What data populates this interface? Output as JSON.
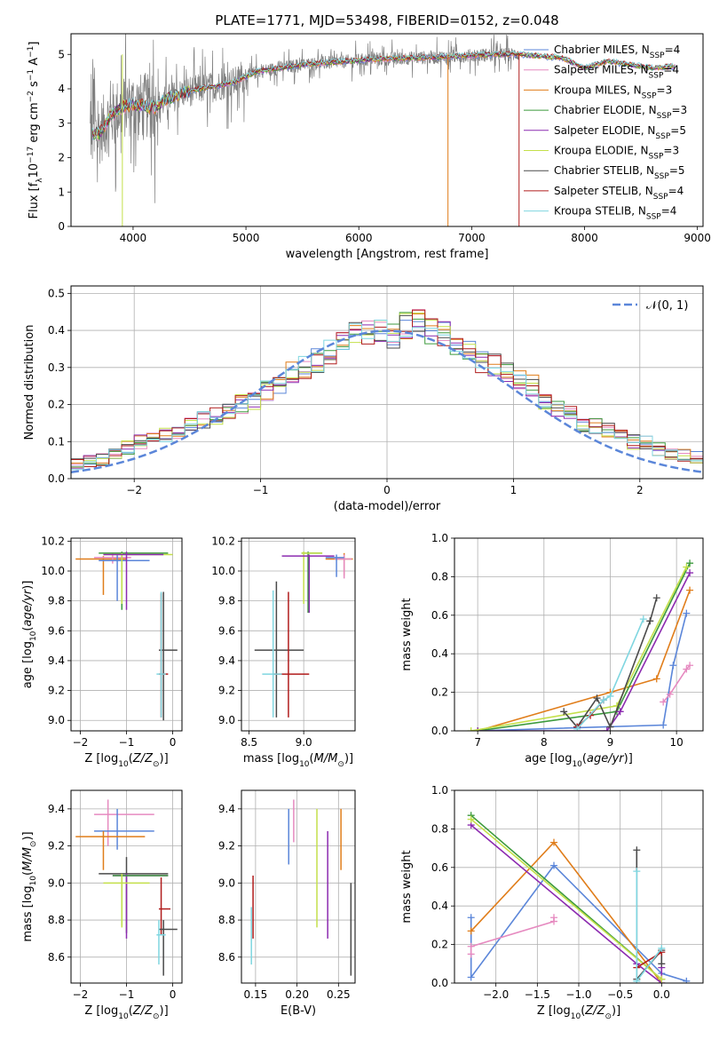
{
  "figure_title": "PLATE=1771, MJD=53498, FIBERID=0152, z=0.048",
  "colors": {
    "chabrier_miles": "#5b86d9",
    "salpeter_miles": "#e68ac0",
    "kroupa_miles": "#e07d1a",
    "chabrier_elodie": "#3c9a3c",
    "salpeter_elodie": "#8c2bb0",
    "kroupa_elodie": "#c4e04a",
    "chabrier_stelib": "#4a4a4a",
    "salpeter_stelib": "#b01c1c",
    "kroupa_stelib": "#7fd6e0",
    "data": "#808080",
    "normal": "#5b86d9"
  },
  "chart_data": [
    {
      "id": "spectrum",
      "type": "line",
      "xlabel": "wavelength [Angstrom, rest frame]",
      "ylabel_parts": [
        "Flux [f",
        "λ",
        "10",
        "−17",
        " erg cm",
        "−2",
        " s",
        "−1",
        " A",
        "−1",
        "]"
      ],
      "xlim": [
        3450,
        9050
      ],
      "ylim": [
        0,
        5.6
      ],
      "xticks": [
        4000,
        5000,
        6000,
        7000,
        8000,
        9000
      ],
      "yticks": [
        0,
        1,
        2,
        3,
        4,
        5
      ],
      "continuum_x": [
        3620,
        3700,
        3800,
        3900,
        4000,
        4100,
        4200,
        4300,
        4500,
        4700,
        4900,
        5100,
        5300,
        5500,
        5700,
        5900,
        6100,
        6300,
        6500,
        6700,
        6900,
        7100,
        7300,
        7420
      ],
      "continuum_y": [
        2.7,
        2.7,
        3.2,
        3.45,
        3.55,
        3.5,
        3.45,
        3.7,
        3.95,
        4.05,
        4.2,
        4.5,
        4.6,
        4.7,
        4.75,
        4.8,
        4.85,
        4.88,
        4.9,
        4.92,
        4.95,
        4.98,
        5.0,
        5.0
      ],
      "model_extension_x": [
        7420,
        7600,
        7800,
        8000,
        8200,
        8400,
        8600,
        8800
      ],
      "model_extension_y": [
        4.95,
        4.95,
        4.9,
        4.6,
        4.8,
        4.7,
        4.6,
        4.65
      ],
      "legend": [
        {
          "label": "Chabrier MILES, N",
          "sub": "SSP",
          "suffix": "=4",
          "color_key": "chabrier_miles"
        },
        {
          "label": "Salpeter MILES, N",
          "sub": "SSP",
          "suffix": "=4",
          "color_key": "salpeter_miles"
        },
        {
          "label": "Kroupa MILES, N",
          "sub": "SSP",
          "suffix": "=3",
          "color_key": "kroupa_miles"
        },
        {
          "label": "Chabrier ELODIE, N",
          "sub": "SSP",
          "suffix": "=3",
          "color_key": "chabrier_elodie"
        },
        {
          "label": "Salpeter ELODIE, N",
          "sub": "SSP",
          "suffix": "=5",
          "color_key": "salpeter_elodie"
        },
        {
          "label": "Kroupa ELODIE, N",
          "sub": "SSP",
          "suffix": "=3",
          "color_key": "kroupa_elodie"
        },
        {
          "label": "Chabrier STELIB, N",
          "sub": "SSP",
          "suffix": "=5",
          "color_key": "chabrier_stelib"
        },
        {
          "label": "Salpeter STELIB, N",
          "sub": "SSP",
          "suffix": "=4",
          "color_key": "salpeter_stelib"
        },
        {
          "label": "Kroupa STELIB, N",
          "sub": "SSP",
          "suffix": "=4",
          "color_key": "kroupa_stelib"
        }
      ],
      "legend_placement": "right"
    },
    {
      "id": "residuals",
      "type": "histogram",
      "xlabel": "(data-model)/error",
      "ylabel": "Normed distribution",
      "xlim": [
        -2.5,
        2.5
      ],
      "ylim": [
        0,
        0.52
      ],
      "xticks": [
        -2,
        -1,
        0,
        1,
        2
      ],
      "yticks": [
        0.0,
        0.1,
        0.2,
        0.3,
        0.4,
        0.5
      ],
      "bin_width": 0.1,
      "grid": true,
      "hist_reference": [
        0.02,
        0.02,
        0.02,
        0.025,
        0.035,
        0.04,
        0.05,
        0.05,
        0.07,
        0.085,
        0.1,
        0.105,
        0.12,
        0.13,
        0.145,
        0.16,
        0.17,
        0.18,
        0.2,
        0.21,
        0.24,
        0.26,
        0.29,
        0.3,
        0.32,
        0.34,
        0.38,
        0.39,
        0.4,
        0.41,
        0.38,
        0.41,
        0.42,
        0.4,
        0.39,
        0.37,
        0.35,
        0.32,
        0.31,
        0.29,
        0.27,
        0.25,
        0.21,
        0.19,
        0.17,
        0.15,
        0.14,
        0.13,
        0.12,
        0.1,
        0.095,
        0.08,
        0.07,
        0.065,
        0.055,
        0.045,
        0.04,
        0.035,
        0.03,
        0.025
      ],
      "legend": [
        {
          "label": "𝒩(0, 1)",
          "color_key": "normal"
        }
      ],
      "legend_placement": "top-right"
    },
    {
      "id": "age_vs_Z",
      "type": "errorbar",
      "xlabel_parts": [
        "Z [log",
        "10",
        "(",
        "Z/Z",
        "⊙",
        ")]"
      ],
      "ylabel_parts": [
        "age  [log",
        "10",
        "(",
        "age/yr",
        ")]"
      ],
      "xlim": [
        -2.2,
        0.2
      ],
      "ylim": [
        8.93,
        10.22
      ],
      "xticks": [
        -2,
        -1,
        0
      ],
      "yticks": [
        9.0,
        9.2,
        9.4,
        9.6,
        9.8,
        10.0,
        10.2
      ],
      "points": [
        {
          "c": "kroupa_miles",
          "x": -1.5,
          "xlo": -2.1,
          "xhi": -1.0,
          "y": 10.08,
          "ylo": 9.84,
          "yhi": 10.1
        },
        {
          "c": "salpeter_miles",
          "x": -1.3,
          "xlo": -1.7,
          "xhi": -0.9,
          "y": 10.09,
          "ylo": 10.05,
          "yhi": 10.12
        },
        {
          "c": "chabrier_miles",
          "x": -1.2,
          "xlo": -1.6,
          "xhi": -0.5,
          "y": 10.07,
          "ylo": 9.8,
          "yhi": 10.11
        },
        {
          "c": "chabrier_elodie",
          "x": -1.1,
          "xlo": -1.6,
          "xhi": -0.1,
          "y": 10.12,
          "ylo": 9.74,
          "yhi": 10.13
        },
        {
          "c": "kroupa_elodie",
          "x": -1.1,
          "xlo": -1.5,
          "xhi": 0.0,
          "y": 10.11,
          "ylo": 9.78,
          "yhi": 10.12
        },
        {
          "c": "salpeter_elodie",
          "x": -1.0,
          "xlo": -1.5,
          "xhi": -0.2,
          "y": 10.11,
          "ylo": 9.74,
          "yhi": 10.13
        },
        {
          "c": "chabrier_stelib",
          "x": -0.2,
          "xlo": -0.3,
          "xhi": 0.1,
          "y": 9.47,
          "ylo": 9.0,
          "yhi": 9.86
        },
        {
          "c": "salpeter_stelib",
          "x": -0.25,
          "xlo": -0.3,
          "xhi": -0.1,
          "y": 9.31,
          "ylo": 9.02,
          "yhi": 9.85
        },
        {
          "c": "kroupa_stelib",
          "x": -0.25,
          "xlo": -0.35,
          "xhi": -0.15,
          "y": 9.31,
          "ylo": 9.02,
          "yhi": 9.86
        }
      ]
    },
    {
      "id": "age_vs_mass",
      "type": "errorbar",
      "xlabel_parts": [
        "mass [log",
        "10",
        "(",
        "M/M",
        "⊙",
        ")]"
      ],
      "ylabel_parts": [],
      "xlim": [
        8.43,
        9.47
      ],
      "ylim": [
        8.93,
        10.22
      ],
      "xticks": [
        8.5,
        9.0
      ],
      "yticks": [
        9.0,
        9.2,
        9.4,
        9.6,
        9.8,
        10.0,
        10.2
      ],
      "points": [
        {
          "c": "kroupa_miles",
          "x": 9.37,
          "xlo": 9.2,
          "xhi": 9.45,
          "y": 10.08,
          "ylo": 9.97,
          "yhi": 10.12
        },
        {
          "c": "salpeter_miles",
          "x": 9.37,
          "xlo": 9.28,
          "xhi": 9.44,
          "y": 10.08,
          "ylo": 9.95,
          "yhi": 10.11
        },
        {
          "c": "chabrier_miles",
          "x": 9.3,
          "xlo": 9.2,
          "xhi": 9.37,
          "y": 10.09,
          "ylo": 9.96,
          "yhi": 10.11
        },
        {
          "c": "chabrier_elodie",
          "x": 9.04,
          "xlo": 8.98,
          "xhi": 9.17,
          "y": 10.12,
          "ylo": 9.72,
          "yhi": 10.13
        },
        {
          "c": "kroupa_elodie",
          "x": 9.0,
          "xlo": 8.98,
          "xhi": 9.17,
          "y": 10.12,
          "ylo": 9.78,
          "yhi": 10.13
        },
        {
          "c": "salpeter_elodie",
          "x": 9.05,
          "xlo": 8.8,
          "xhi": 9.28,
          "y": 10.1,
          "ylo": 9.72,
          "yhi": 10.11
        },
        {
          "c": "chabrier_stelib",
          "x": 8.75,
          "xlo": 8.55,
          "xhi": 9.0,
          "y": 9.47,
          "ylo": 9.02,
          "yhi": 9.93
        },
        {
          "c": "salpeter_stelib",
          "x": 8.86,
          "xlo": 8.72,
          "xhi": 9.05,
          "y": 9.31,
          "ylo": 9.02,
          "yhi": 9.86
        },
        {
          "c": "kroupa_stelib",
          "x": 8.72,
          "xlo": 8.62,
          "xhi": 8.8,
          "y": 9.31,
          "ylo": 9.02,
          "yhi": 9.87
        }
      ]
    },
    {
      "id": "mass_weight_vs_age",
      "type": "line",
      "xlabel_parts": [
        "age  [log",
        "10",
        "(",
        "age/yr",
        ")]"
      ],
      "ylabel": "mass weight",
      "xlim": [
        6.65,
        10.4
      ],
      "ylim": [
        0.0,
        1.0
      ],
      "xticks": [
        7,
        8,
        9,
        10
      ],
      "yticks": [
        0.0,
        0.2,
        0.4,
        0.6,
        0.8,
        1.0
      ],
      "series": [
        {
          "c": "chabrier_miles",
          "x": [
            7.0,
            9.8,
            9.95,
            10.15
          ],
          "y": [
            0.0,
            0.03,
            0.34,
            0.61
          ]
        },
        {
          "c": "salpeter_miles",
          "x": [
            9.8,
            9.9,
            10.15,
            10.2
          ],
          "y": [
            0.15,
            0.19,
            0.32,
            0.34
          ]
        },
        {
          "c": "kroupa_miles",
          "x": [
            7.0,
            9.0,
            9.7,
            10.2
          ],
          "y": [
            0.0,
            0.2,
            0.27,
            0.73
          ]
        },
        {
          "c": "chabrier_elodie",
          "x": [
            7.0,
            9.1,
            10.2
          ],
          "y": [
            0.0,
            0.1,
            0.87
          ]
        },
        {
          "c": "salpeter_elodie",
          "x": [
            7.0,
            8.95,
            9.15,
            10.2
          ],
          "y": [
            0.0,
            0.0,
            0.1,
            0.82
          ]
        },
        {
          "c": "kroupa_elodie",
          "x": [
            6.9,
            9.1,
            10.15
          ],
          "y": [
            0.0,
            0.13,
            0.85
          ]
        },
        {
          "c": "chabrier_stelib",
          "x": [
            8.3,
            8.5,
            8.8,
            9.0,
            9.6,
            9.7
          ],
          "y": [
            0.1,
            0.02,
            0.17,
            0.02,
            0.57,
            0.69
          ]
        },
        {
          "c": "salpeter_stelib",
          "x": [
            8.5,
            8.7,
            8.9
          ],
          "y": [
            0.02,
            0.08,
            0.16
          ]
        },
        {
          "c": "kroupa_stelib",
          "x": [
            8.5,
            8.9,
            9.0,
            9.5
          ],
          "y": [
            0.01,
            0.16,
            0.18,
            0.58
          ]
        }
      ]
    },
    {
      "id": "mass_vs_Z",
      "type": "errorbar",
      "xlabel_parts": [
        "Z [log",
        "10",
        "(",
        "Z/Z",
        "⊙",
        ")]"
      ],
      "ylabel_parts": [
        "mass [log",
        "10",
        "(",
        "M/M",
        "⊙",
        ")]"
      ],
      "xlim": [
        -2.2,
        0.2
      ],
      "ylim": [
        8.46,
        9.5
      ],
      "xticks": [
        -2,
        -1,
        0
      ],
      "yticks": [
        8.6,
        8.8,
        9.0,
        9.2,
        9.4
      ],
      "points": [
        {
          "c": "salpeter_miles",
          "x": -1.4,
          "xlo": -1.7,
          "xhi": -0.4,
          "y": 9.37,
          "ylo": 9.2,
          "yhi": 9.45
        },
        {
          "c": "chabrier_miles",
          "x": -1.2,
          "xlo": -1.7,
          "xhi": -0.4,
          "y": 9.28,
          "ylo": 9.18,
          "yhi": 9.4
        },
        {
          "c": "kroupa_miles",
          "x": -1.5,
          "xlo": -2.1,
          "xhi": -0.6,
          "y": 9.25,
          "ylo": 9.07,
          "yhi": 9.28
        },
        {
          "c": "chabrier_stelib",
          "x": -1.0,
          "xlo": -1.6,
          "xhi": -0.1,
          "y": 9.05,
          "ylo": 8.73,
          "yhi": 9.14
        },
        {
          "c": "salpeter_elodie",
          "x": -1.0,
          "xlo": -1.3,
          "xhi": -0.1,
          "y": 9.04,
          "ylo": 8.7,
          "yhi": 9.05
        },
        {
          "c": "chabrier_elodie",
          "x": -1.1,
          "xlo": -1.3,
          "xhi": -0.1,
          "y": 9.04,
          "ylo": 8.77,
          "yhi": 9.05
        },
        {
          "c": "kroupa_elodie",
          "x": -1.1,
          "xlo": -1.5,
          "xhi": -0.5,
          "y": 9.0,
          "ylo": 8.76,
          "yhi": 9.05
        },
        {
          "c": "salpeter_stelib",
          "x": -0.25,
          "xlo": -0.3,
          "xhi": -0.05,
          "y": 8.86,
          "ylo": 8.72,
          "yhi": 9.03
        },
        {
          "c": "chabrier_stelib",
          "x": -0.2,
          "xlo": -0.3,
          "xhi": 0.1,
          "y": 8.75,
          "ylo": 8.5,
          "yhi": 8.8
        },
        {
          "c": "kroupa_stelib",
          "x": -0.3,
          "xlo": -0.35,
          "xhi": -0.15,
          "y": 8.72,
          "ylo": 8.56,
          "yhi": 8.8
        }
      ]
    },
    {
      "id": "mass_vs_ebv",
      "type": "errorbar",
      "xlabel": "E(B-V)",
      "ylabel_parts": [],
      "xlim": [
        0.133,
        0.27
      ],
      "ylim": [
        8.46,
        9.5
      ],
      "xticks": [
        0.15,
        0.2,
        0.25
      ],
      "yticks": [
        8.6,
        8.8,
        9.0,
        9.2,
        9.4
      ],
      "points": [
        {
          "c": "kroupa_stelib",
          "x": 0.145,
          "ylo": 8.56,
          "yhi": 8.87
        },
        {
          "c": "salpeter_stelib",
          "x": 0.147,
          "ylo": 8.7,
          "yhi": 9.04
        },
        {
          "c": "chabrier_miles",
          "x": 0.19,
          "ylo": 9.1,
          "yhi": 9.4
        },
        {
          "c": "salpeter_miles",
          "x": 0.196,
          "ylo": 9.22,
          "yhi": 9.45
        },
        {
          "c": "kroupa_elodie",
          "x": 0.224,
          "ylo": 8.76,
          "yhi": 9.4
        },
        {
          "c": "salpeter_elodie",
          "x": 0.237,
          "ylo": 8.7,
          "yhi": 9.28
        },
        {
          "c": "kroupa_miles",
          "x": 0.253,
          "ylo": 9.07,
          "yhi": 9.4
        },
        {
          "c": "chabrier_stelib",
          "x": 0.265,
          "ylo": 8.5,
          "yhi": 9.0
        }
      ]
    },
    {
      "id": "mass_weight_vs_Z",
      "type": "line",
      "xlabel_parts": [
        "Z [log",
        "10",
        "(",
        "Z/Z",
        "⊙",
        ")]"
      ],
      "ylabel": "mass weight",
      "xlim": [
        -2.5,
        0.5
      ],
      "ylim": [
        0.0,
        1.0
      ],
      "xticks": [
        -2.0,
        -1.5,
        -1.0,
        -0.5,
        0.0
      ],
      "yticks": [
        0.0,
        0.2,
        0.4,
        0.6,
        0.8,
        1.0
      ],
      "series": [
        {
          "c": "chabrier_miles",
          "x": [
            -2.3,
            -2.3,
            -1.3,
            0.0,
            0.3
          ],
          "y": [
            0.34,
            0.03,
            0.61,
            0.05,
            0.01
          ]
        },
        {
          "c": "salpeter_miles",
          "x": [
            -2.3,
            -2.3,
            -1.3,
            -1.3
          ],
          "y": [
            0.15,
            0.19,
            0.32,
            0.34
          ]
        },
        {
          "c": "kroupa_miles",
          "x": [
            -2.3,
            -1.3,
            0.0
          ],
          "y": [
            0.27,
            0.73,
            0.0
          ]
        },
        {
          "c": "chabrier_elodie",
          "x": [
            -2.3,
            0.0
          ],
          "y": [
            0.87,
            0.02
          ]
        },
        {
          "c": "salpeter_elodie",
          "x": [
            -2.3,
            -0.3,
            0.0,
            0.0
          ],
          "y": [
            0.82,
            0.1,
            0.0,
            0.08
          ]
        },
        {
          "c": "kroupa_elodie",
          "x": [
            -2.3,
            0.0
          ],
          "y": [
            0.85,
            0.02
          ]
        },
        {
          "c": "chabrier_stelib",
          "x": [
            -0.3,
            -0.3,
            0.0,
            0.0
          ],
          "y": [
            0.69,
            0.02,
            0.17,
            0.1
          ]
        },
        {
          "c": "salpeter_stelib",
          "x": [
            -0.3,
            0.0
          ],
          "y": [
            0.08,
            0.16
          ]
        },
        {
          "c": "kroupa_stelib",
          "x": [
            -0.3,
            -0.3,
            0.0
          ],
          "y": [
            0.58,
            0.01,
            0.18
          ]
        }
      ]
    }
  ]
}
